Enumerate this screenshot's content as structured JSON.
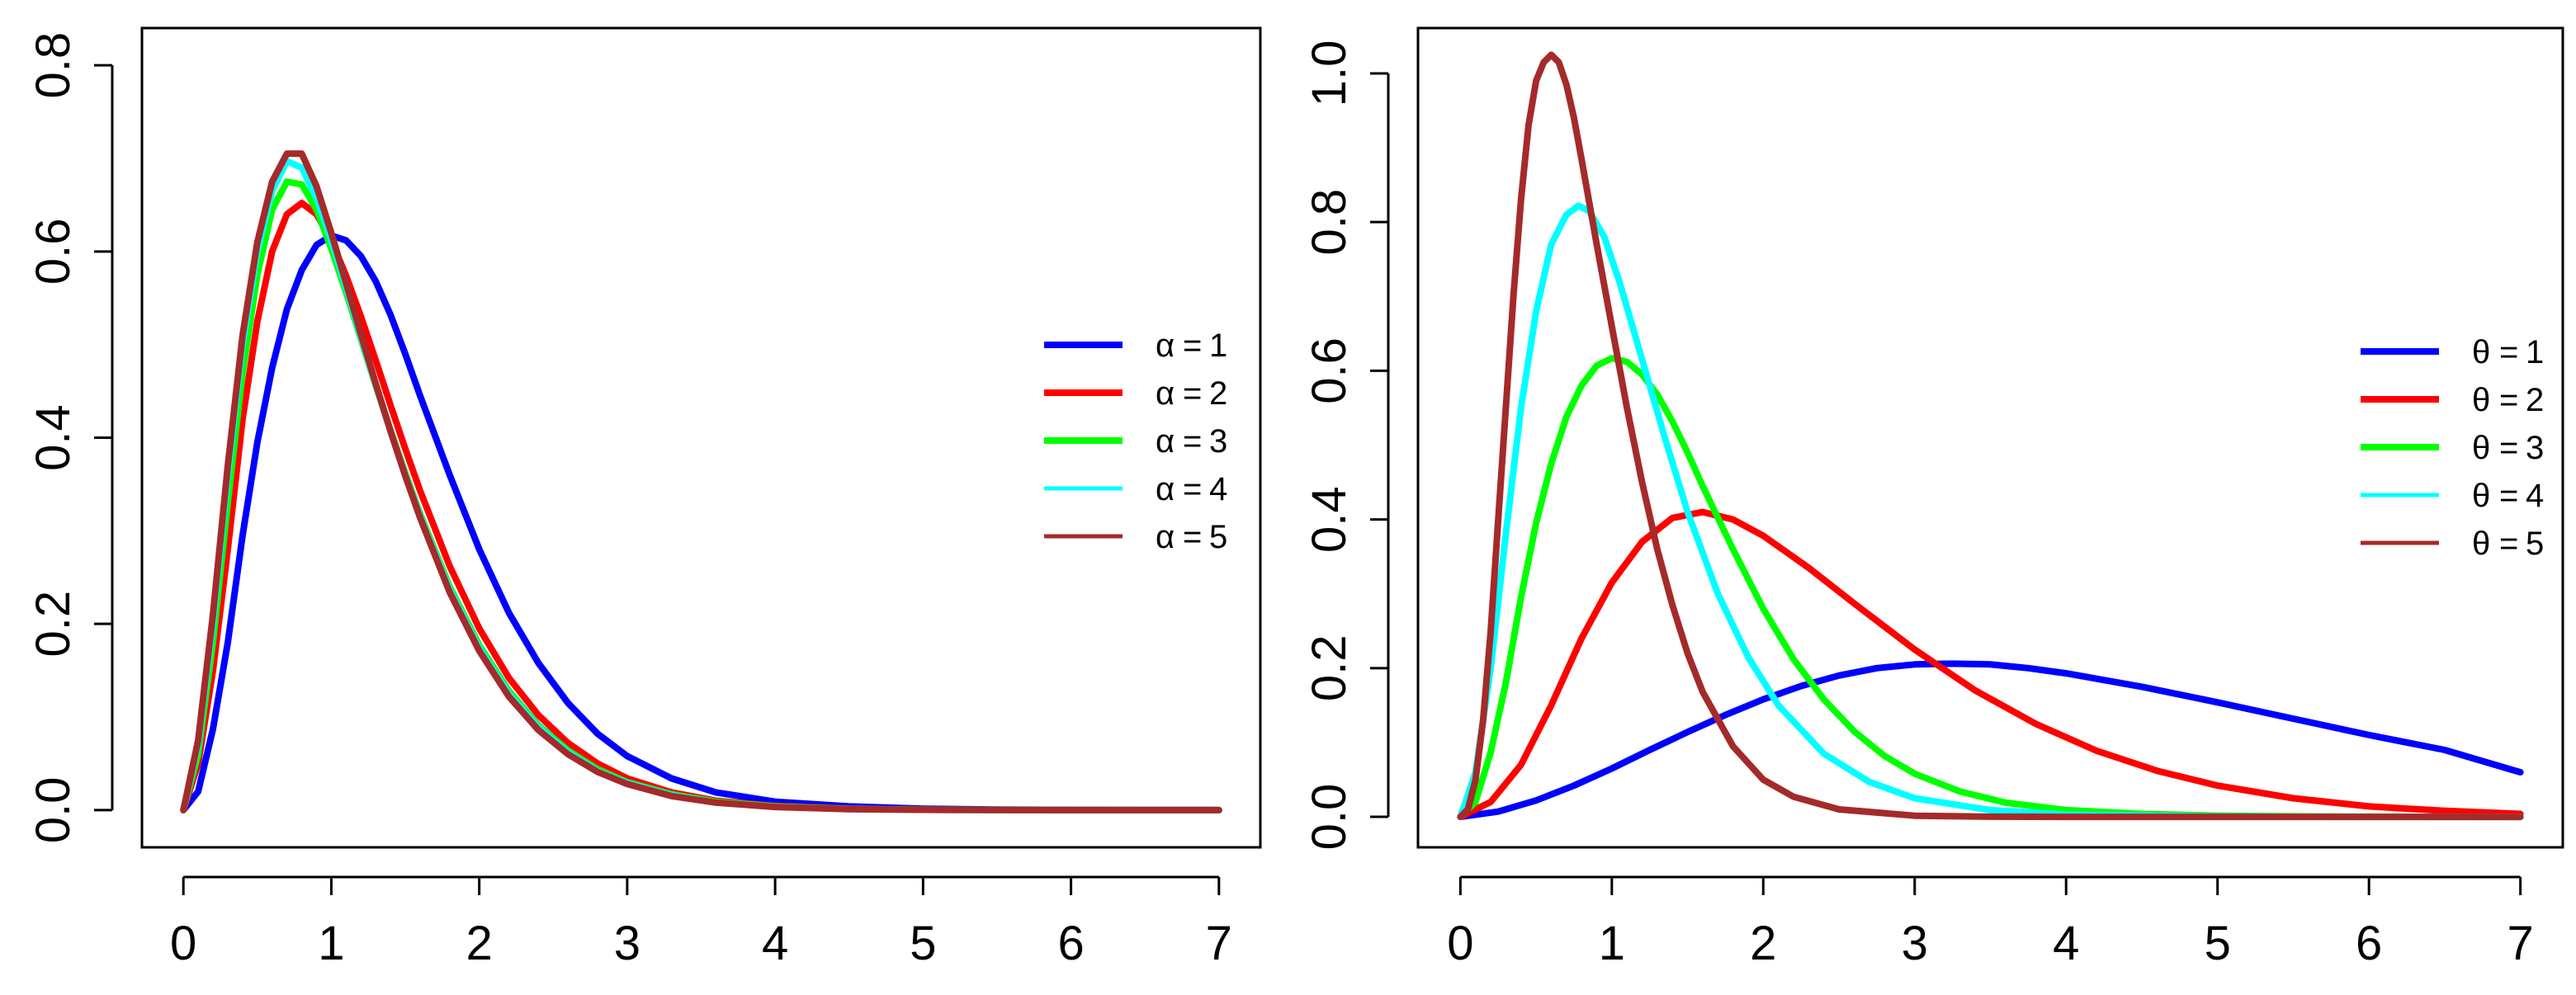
{
  "chart_data": [
    {
      "type": "line",
      "title": "",
      "xlabel": "",
      "ylabel": "",
      "xlim": [
        -0.28,
        7.28
      ],
      "ylim": [
        -0.04,
        0.84
      ],
      "xticks": [
        0,
        1,
        2,
        3,
        4,
        5,
        6,
        7
      ],
      "yticks": [
        0.0,
        0.2,
        0.4,
        0.6,
        0.8
      ],
      "xtick_labels": [
        "0",
        "1",
        "2",
        "3",
        "4",
        "5",
        "6",
        "7"
      ],
      "ytick_labels": [
        "0.0",
        "0.2",
        "0.4",
        "0.6",
        "0.8"
      ],
      "grid": false,
      "legend_position": "right",
      "legend_symbol": "α",
      "series": [
        {
          "name": "1",
          "color": "#0000ff",
          "x": [
            0,
            0.1,
            0.2,
            0.3,
            0.4,
            0.5,
            0.6,
            0.7,
            0.8,
            0.9,
            1.0,
            1.1,
            1.2,
            1.3,
            1.4,
            1.5,
            1.6,
            1.8,
            2.0,
            2.2,
            2.4,
            2.6,
            2.8,
            3.0,
            3.3,
            3.6,
            4.0,
            4.5,
            5.0,
            5.5,
            6.0,
            6.5,
            7.0
          ],
          "y": [
            0,
            0.02,
            0.087,
            0.18,
            0.295,
            0.395,
            0.475,
            0.538,
            0.58,
            0.607,
            0.617,
            0.612,
            0.595,
            0.568,
            0.532,
            0.49,
            0.445,
            0.36,
            0.28,
            0.212,
            0.158,
            0.115,
            0.082,
            0.058,
            0.034,
            0.019,
            0.009,
            0.004,
            0.0015,
            0.0006,
            0.0002,
            0.0001,
            0
          ]
        },
        {
          "name": "2",
          "color": "#ff0000",
          "x": [
            0,
            0.1,
            0.2,
            0.3,
            0.4,
            0.5,
            0.6,
            0.7,
            0.8,
            0.9,
            1.0,
            1.1,
            1.2,
            1.3,
            1.4,
            1.5,
            1.6,
            1.8,
            2.0,
            2.2,
            2.4,
            2.6,
            2.8,
            3.0,
            3.3,
            3.6,
            4.0,
            4.5,
            5.0,
            5.5,
            6.0,
            6.5,
            7.0
          ],
          "y": [
            0,
            0.05,
            0.15,
            0.28,
            0.42,
            0.525,
            0.6,
            0.64,
            0.652,
            0.64,
            0.612,
            0.574,
            0.53,
            0.483,
            0.435,
            0.388,
            0.343,
            0.262,
            0.195,
            0.142,
            0.102,
            0.072,
            0.05,
            0.034,
            0.019,
            0.01,
            0.0045,
            0.0015,
            0.0005,
            0.0002,
            0,
            0,
            0
          ]
        },
        {
          "name": "3",
          "color": "#00ff00",
          "x": [
            0,
            0.1,
            0.2,
            0.3,
            0.4,
            0.5,
            0.6,
            0.7,
            0.8,
            0.9,
            1.0,
            1.1,
            1.2,
            1.3,
            1.4,
            1.5,
            1.6,
            1.8,
            2.0,
            2.2,
            2.4,
            2.6,
            2.8,
            3.0,
            3.3,
            3.6,
            4.0,
            4.5,
            5.0,
            5.5,
            6.0,
            6.5,
            7.0
          ],
          "y": [
            0,
            0.06,
            0.18,
            0.33,
            0.47,
            0.575,
            0.645,
            0.675,
            0.672,
            0.645,
            0.603,
            0.556,
            0.506,
            0.456,
            0.408,
            0.362,
            0.318,
            0.24,
            0.177,
            0.128,
            0.091,
            0.064,
            0.044,
            0.03,
            0.017,
            0.009,
            0.004,
            0.0012,
            0.0004,
            0.0001,
            0,
            0,
            0
          ]
        },
        {
          "name": "4",
          "color": "#00ffff",
          "x": [
            0,
            0.1,
            0.2,
            0.3,
            0.4,
            0.5,
            0.6,
            0.7,
            0.8,
            0.9,
            1.0,
            1.1,
            1.2,
            1.3,
            1.4,
            1.5,
            1.6,
            1.8,
            2.0,
            2.2,
            2.4,
            2.6,
            2.8,
            3.0,
            3.3,
            3.6,
            4.0,
            4.5,
            5.0,
            5.5,
            6.0,
            6.5,
            7.0
          ],
          "y": [
            0,
            0.07,
            0.2,
            0.36,
            0.5,
            0.6,
            0.665,
            0.697,
            0.69,
            0.657,
            0.612,
            0.561,
            0.508,
            0.457,
            0.407,
            0.36,
            0.316,
            0.237,
            0.174,
            0.125,
            0.089,
            0.062,
            0.042,
            0.029,
            0.016,
            0.008,
            0.0035,
            0.001,
            0.0003,
            0.0001,
            0,
            0,
            0
          ]
        },
        {
          "name": "5",
          "color": "#a52a2a",
          "x": [
            0,
            0.1,
            0.2,
            0.3,
            0.4,
            0.5,
            0.6,
            0.7,
            0.8,
            0.9,
            1.0,
            1.1,
            1.2,
            1.3,
            1.4,
            1.5,
            1.6,
            1.8,
            2.0,
            2.2,
            2.4,
            2.6,
            2.8,
            3.0,
            3.3,
            3.6,
            4.0,
            4.5,
            5.0,
            5.5,
            6.0,
            6.5,
            7.0
          ],
          "y": [
            0,
            0.075,
            0.21,
            0.37,
            0.51,
            0.61,
            0.675,
            0.705,
            0.705,
            0.67,
            0.62,
            0.566,
            0.511,
            0.458,
            0.407,
            0.359,
            0.314,
            0.234,
            0.171,
            0.122,
            0.086,
            0.06,
            0.041,
            0.028,
            0.015,
            0.008,
            0.0033,
            0.001,
            0.0003,
            0.0001,
            0,
            0,
            0
          ]
        }
      ]
    },
    {
      "type": "line",
      "title": "",
      "xlabel": "",
      "ylabel": "",
      "xlim": [
        -0.28,
        7.28
      ],
      "ylim": [
        -0.041,
        1.061
      ],
      "xticks": [
        0,
        1,
        2,
        3,
        4,
        5,
        6,
        7
      ],
      "yticks": [
        0.0,
        0.2,
        0.4,
        0.6,
        0.8,
        1.0
      ],
      "xtick_labels": [
        "0",
        "1",
        "2",
        "3",
        "4",
        "5",
        "6",
        "7"
      ],
      "ytick_labels": [
        "0.0",
        "0.2",
        "0.4",
        "0.6",
        "0.8",
        "1.0"
      ],
      "grid": false,
      "legend_position": "right",
      "legend_symbol": "θ",
      "series": [
        {
          "name": "1",
          "color": "#0000ff",
          "x": [
            0,
            0.25,
            0.5,
            0.75,
            1.0,
            1.25,
            1.5,
            1.75,
            2.0,
            2.25,
            2.5,
            2.75,
            3.0,
            3.25,
            3.5,
            3.75,
            4.0,
            4.5,
            5.0,
            5.5,
            6.0,
            6.5,
            7.0
          ],
          "y": [
            0,
            0.007,
            0.022,
            0.042,
            0.065,
            0.09,
            0.114,
            0.137,
            0.158,
            0.176,
            0.19,
            0.2,
            0.205,
            0.206,
            0.205,
            0.2,
            0.193,
            0.175,
            0.154,
            0.132,
            0.11,
            0.09,
            0.06
          ]
        },
        {
          "name": "2",
          "color": "#ff0000",
          "x": [
            0,
            0.2,
            0.4,
            0.6,
            0.8,
            1.0,
            1.2,
            1.4,
            1.6,
            1.8,
            2.0,
            2.3,
            2.6,
            3.0,
            3.4,
            3.8,
            4.2,
            4.6,
            5.0,
            5.5,
            6.0,
            6.5,
            7.0
          ],
          "y": [
            0,
            0.02,
            0.07,
            0.15,
            0.24,
            0.315,
            0.37,
            0.402,
            0.41,
            0.4,
            0.378,
            0.335,
            0.287,
            0.225,
            0.17,
            0.125,
            0.089,
            0.062,
            0.042,
            0.025,
            0.014,
            0.008,
            0.004
          ]
        },
        {
          "name": "3",
          "color": "#00ff00",
          "x": [
            0,
            0.1,
            0.2,
            0.3,
            0.4,
            0.5,
            0.6,
            0.7,
            0.8,
            0.9,
            1.0,
            1.1,
            1.2,
            1.3,
            1.4,
            1.5,
            1.6,
            1.8,
            2.0,
            2.2,
            2.4,
            2.6,
            2.8,
            3.0,
            3.3,
            3.6,
            4.0,
            4.5,
            5.0,
            5.5,
            6.0,
            7.0
          ],
          "y": [
            0,
            0.02,
            0.087,
            0.18,
            0.295,
            0.395,
            0.475,
            0.538,
            0.58,
            0.607,
            0.617,
            0.612,
            0.595,
            0.568,
            0.532,
            0.49,
            0.445,
            0.36,
            0.28,
            0.212,
            0.158,
            0.115,
            0.082,
            0.058,
            0.034,
            0.019,
            0.009,
            0.004,
            0.0015,
            0.0006,
            0.0002,
            0
          ]
        },
        {
          "name": "4",
          "color": "#00ffff",
          "x": [
            0,
            0.1,
            0.2,
            0.3,
            0.4,
            0.5,
            0.6,
            0.7,
            0.78,
            0.85,
            0.95,
            1.05,
            1.15,
            1.25,
            1.35,
            1.5,
            1.7,
            1.9,
            2.1,
            2.4,
            2.7,
            3.0,
            3.5,
            4.0,
            5.0,
            6.0,
            7.0
          ],
          "y": [
            0,
            0.06,
            0.2,
            0.38,
            0.55,
            0.68,
            0.77,
            0.81,
            0.822,
            0.815,
            0.78,
            0.72,
            0.65,
            0.58,
            0.51,
            0.41,
            0.3,
            0.215,
            0.15,
            0.085,
            0.047,
            0.025,
            0.009,
            0.003,
            0.0003,
            0,
            0
          ]
        },
        {
          "name": "5",
          "color": "#a52a2a",
          "x": [
            0,
            0.05,
            0.1,
            0.15,
            0.2,
            0.25,
            0.3,
            0.35,
            0.4,
            0.45,
            0.5,
            0.55,
            0.6,
            0.65,
            0.7,
            0.75,
            0.8,
            0.9,
            1.0,
            1.1,
            1.2,
            1.3,
            1.4,
            1.5,
            1.6,
            1.8,
            2.0,
            2.2,
            2.5,
            3.0,
            3.5,
            4.0,
            5.0,
            7.0
          ],
          "y": [
            0,
            0.01,
            0.05,
            0.13,
            0.25,
            0.4,
            0.55,
            0.7,
            0.83,
            0.93,
            0.99,
            1.015,
            1.025,
            1.015,
            0.985,
            0.94,
            0.885,
            0.77,
            0.66,
            0.55,
            0.45,
            0.36,
            0.285,
            0.22,
            0.168,
            0.095,
            0.05,
            0.027,
            0.01,
            0.0015,
            0.0002,
            0,
            0,
            0
          ]
        }
      ]
    }
  ]
}
